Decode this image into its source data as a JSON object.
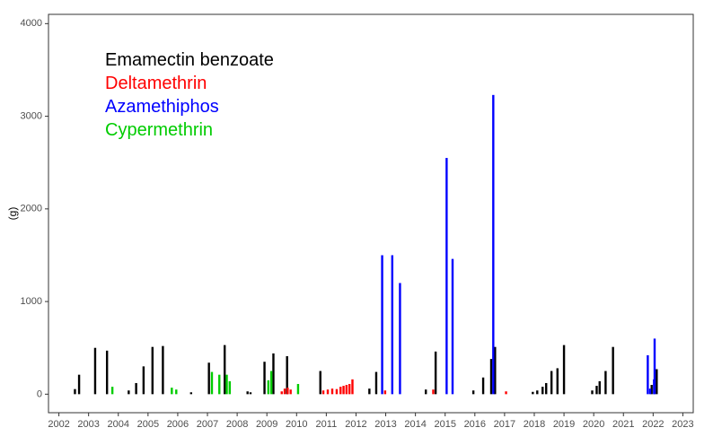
{
  "chart_data": {
    "type": "bar",
    "title": "",
    "xlabel": "",
    "ylabel": "(g)",
    "xlim": [
      2001.65,
      2023.35
    ],
    "ylim": [
      -200,
      4100
    ],
    "x_ticks": [
      2002,
      2003,
      2004,
      2005,
      2006,
      2007,
      2008,
      2009,
      2010,
      2011,
      2012,
      2013,
      2014,
      2015,
      2016,
      2017,
      2018,
      2019,
      2020,
      2021,
      2022,
      2023
    ],
    "x_tick_labels": [
      "2002",
      "2003",
      "2004",
      "2005",
      "2006",
      "2007",
      "2008",
      "2009",
      "2010",
      "2011",
      "2012",
      "2013",
      "2014",
      "2015",
      "2016",
      "2017",
      "2018",
      "2019",
      "2020",
      "2021",
      "2022",
      "2023"
    ],
    "y_ticks": [
      0,
      1000,
      2000,
      3000,
      4000
    ],
    "y_tick_labels": [
      "0",
      "1000",
      "2000",
      "3000",
      "4000"
    ],
    "grid": false,
    "legend_position": "top-left",
    "series": [
      {
        "name": "Emamectin benzoate",
        "color": "#000000",
        "points": [
          {
            "x": 2002.54,
            "y": 55
          },
          {
            "x": 2002.68,
            "y": 210
          },
          {
            "x": 2003.22,
            "y": 500
          },
          {
            "x": 2003.62,
            "y": 470
          },
          {
            "x": 2004.35,
            "y": 40
          },
          {
            "x": 2004.6,
            "y": 120
          },
          {
            "x": 2004.85,
            "y": 300
          },
          {
            "x": 2005.15,
            "y": 510
          },
          {
            "x": 2005.5,
            "y": 520
          },
          {
            "x": 2006.45,
            "y": 20
          },
          {
            "x": 2007.05,
            "y": 340
          },
          {
            "x": 2007.58,
            "y": 530
          },
          {
            "x": 2008.35,
            "y": 30
          },
          {
            "x": 2008.45,
            "y": 20
          },
          {
            "x": 2008.92,
            "y": 350
          },
          {
            "x": 2009.22,
            "y": 440
          },
          {
            "x": 2009.68,
            "y": 410
          },
          {
            "x": 2010.8,
            "y": 250
          },
          {
            "x": 2012.45,
            "y": 60
          },
          {
            "x": 2012.68,
            "y": 240
          },
          {
            "x": 2014.35,
            "y": 50
          },
          {
            "x": 2014.68,
            "y": 460
          },
          {
            "x": 2015.95,
            "y": 40
          },
          {
            "x": 2016.28,
            "y": 180
          },
          {
            "x": 2016.55,
            "y": 380
          },
          {
            "x": 2016.68,
            "y": 510
          },
          {
            "x": 2017.95,
            "y": 25
          },
          {
            "x": 2018.1,
            "y": 40
          },
          {
            "x": 2018.28,
            "y": 80
          },
          {
            "x": 2018.4,
            "y": 120
          },
          {
            "x": 2018.58,
            "y": 250
          },
          {
            "x": 2018.78,
            "y": 280
          },
          {
            "x": 2019.0,
            "y": 530
          },
          {
            "x": 2019.95,
            "y": 40
          },
          {
            "x": 2020.1,
            "y": 90
          },
          {
            "x": 2020.2,
            "y": 140
          },
          {
            "x": 2020.4,
            "y": 250
          },
          {
            "x": 2020.65,
            "y": 510
          },
          {
            "x": 2021.95,
            "y": 100
          },
          {
            "x": 2022.12,
            "y": 270
          }
        ]
      },
      {
        "name": "Deltamethrin",
        "color": "#ff0000",
        "points": [
          {
            "x": 2009.5,
            "y": 30
          },
          {
            "x": 2009.6,
            "y": 60
          },
          {
            "x": 2009.7,
            "y": 70
          },
          {
            "x": 2009.8,
            "y": 50
          },
          {
            "x": 2010.9,
            "y": 40
          },
          {
            "x": 2011.05,
            "y": 50
          },
          {
            "x": 2011.2,
            "y": 60
          },
          {
            "x": 2011.35,
            "y": 55
          },
          {
            "x": 2011.48,
            "y": 80
          },
          {
            "x": 2011.58,
            "y": 90
          },
          {
            "x": 2011.68,
            "y": 100
          },
          {
            "x": 2011.78,
            "y": 110
          },
          {
            "x": 2011.88,
            "y": 160
          },
          {
            "x": 2012.98,
            "y": 40
          },
          {
            "x": 2014.6,
            "y": 50
          },
          {
            "x": 2017.05,
            "y": 30
          }
        ]
      },
      {
        "name": "Azamethiphos",
        "color": "#0000ff",
        "points": [
          {
            "x": 2012.88,
            "y": 1500
          },
          {
            "x": 2013.22,
            "y": 1500
          },
          {
            "x": 2013.48,
            "y": 1200
          },
          {
            "x": 2015.05,
            "y": 2550
          },
          {
            "x": 2015.25,
            "y": 1460
          },
          {
            "x": 2016.62,
            "y": 3230
          },
          {
            "x": 2021.82,
            "y": 420
          },
          {
            "x": 2021.9,
            "y": 60
          },
          {
            "x": 2022.03,
            "y": 160
          },
          {
            "x": 2022.05,
            "y": 600
          }
        ]
      },
      {
        "name": "Cypermethrin",
        "color": "#00cc00",
        "points": [
          {
            "x": 2003.8,
            "y": 80
          },
          {
            "x": 2005.8,
            "y": 70
          },
          {
            "x": 2005.95,
            "y": 50
          },
          {
            "x": 2007.15,
            "y": 240
          },
          {
            "x": 2007.4,
            "y": 210
          },
          {
            "x": 2007.65,
            "y": 210
          },
          {
            "x": 2007.75,
            "y": 140
          },
          {
            "x": 2009.05,
            "y": 150
          },
          {
            "x": 2009.15,
            "y": 250
          },
          {
            "x": 2010.05,
            "y": 110
          }
        ]
      }
    ]
  }
}
